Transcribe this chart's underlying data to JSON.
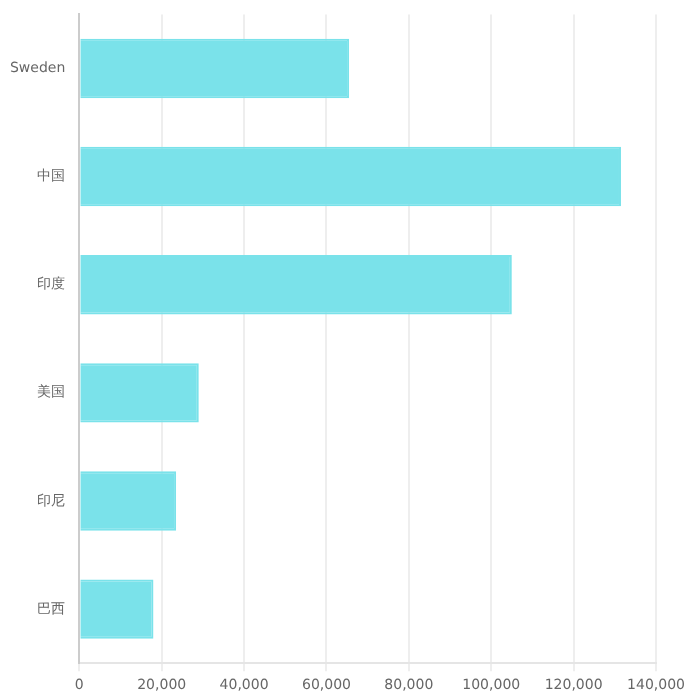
{
  "chart_data": {
    "type": "bar",
    "orientation": "horizontal",
    "categories": [
      "Sweden",
      "中国",
      "印度",
      "美国",
      "印尼",
      "巴西"
    ],
    "values": [
      65500,
      131500,
      105000,
      29000,
      23500,
      18000
    ],
    "color": "#7ae2ea",
    "xlim": [
      0,
      140000
    ],
    "xticks": [
      0,
      {
        "value": 20000,
        "label": "20,000"
      },
      {
        "value": 40000,
        "label": "40,000"
      },
      {
        "value": 60000,
        "label": "60,000"
      },
      {
        "value": 80000,
        "label": "80,000"
      },
      {
        "value": 100000,
        "label": "100,000"
      },
      {
        "value": 120000,
        "label": "120,000"
      },
      {
        "value": 140000,
        "label": "140,000"
      }
    ],
    "grid": "x"
  }
}
